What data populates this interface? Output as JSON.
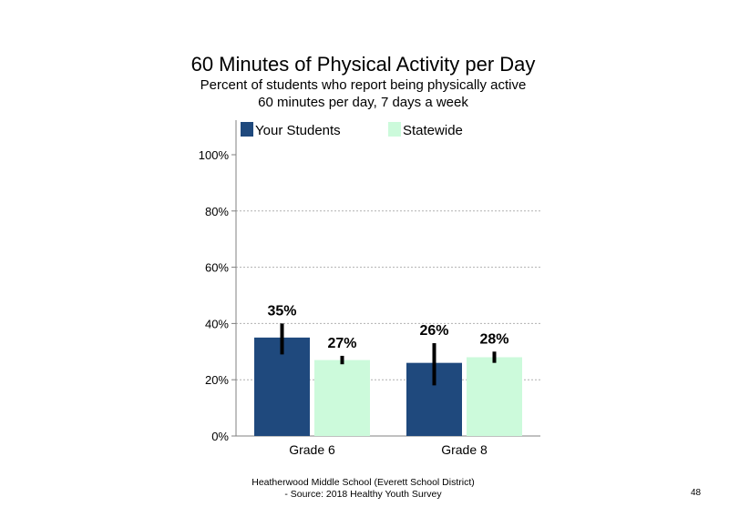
{
  "slide": {
    "title": "60 Minutes of Physical Activity per Day",
    "subtitle_line1": "Percent of students who report being physically active",
    "subtitle_line2": "60 minutes per day, 7 days a week",
    "footer_line1": "Heatherwood Middle School (Everett School District)",
    "footer_line2": "- Source: 2018 Healthy Youth Survey",
    "page_number": "48"
  },
  "chart_data": {
    "type": "bar",
    "categories": [
      "Grade 6",
      "Grade 8"
    ],
    "series": [
      {
        "name": "Your Students",
        "color": "#1f497d",
        "values": [
          35,
          26
        ],
        "labels": [
          "35%",
          "26%"
        ],
        "error_low": [
          29,
          18
        ],
        "error_high": [
          40,
          33
        ]
      },
      {
        "name": "Statewide",
        "color": "#ccfadb",
        "values": [
          27,
          28
        ],
        "labels": [
          "27%",
          "28%"
        ],
        "error_low": [
          25.5,
          26
        ],
        "error_high": [
          28.5,
          30
        ]
      }
    ],
    "ylim": [
      0,
      100
    ],
    "yticks": [
      0,
      20,
      40,
      60,
      80,
      100
    ],
    "ytick_labels": [
      "0%",
      "20%",
      "40%",
      "60%",
      "80%",
      "100%"
    ],
    "grid": "horizontal dotted",
    "legend": "top",
    "error_bars": true
  }
}
